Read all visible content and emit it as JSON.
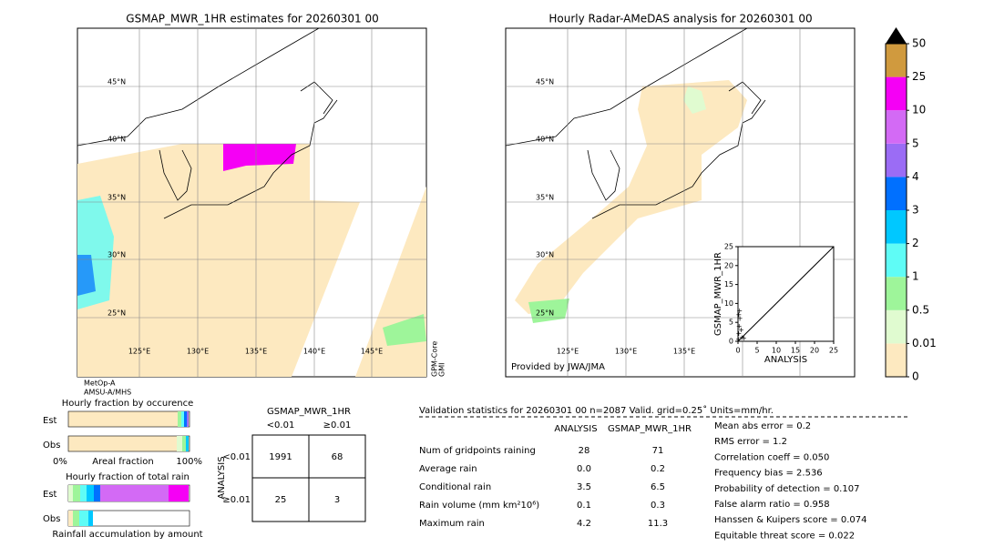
{
  "map_left": {
    "title": "GSMAP_MWR_1HR estimates for 20260301 00",
    "lat_labels": [
      "45°N",
      "40°N",
      "35°N",
      "30°N",
      "25°N"
    ],
    "lon_labels": [
      "125°E",
      "130°E",
      "135°E",
      "140°E",
      "145°E"
    ],
    "sensor": [
      "GPM-Core",
      "GMI"
    ],
    "satellites": [
      "MetOp-A",
      "AMSU-A/MHS"
    ]
  },
  "map_right": {
    "title": "Hourly Radar-AMeDAS analysis for 20260301 00",
    "lat_labels": [
      "45°N",
      "40°N",
      "35°N",
      "30°N",
      "25°N"
    ],
    "lon_labels": [
      "125°E",
      "130°E",
      "135°E"
    ],
    "credit": "Provided by JWA/JMA"
  },
  "colorbar": {
    "ticks": [
      0,
      0.01,
      0.5,
      1,
      2,
      3,
      4,
      5,
      10,
      25,
      50
    ],
    "colors": [
      "#fde9c0",
      "#e0fbd0",
      "#9ef59a",
      "#5ffcf6",
      "#00c8ff",
      "#0070ff",
      "#9b6cf5",
      "#d36af5",
      "#f500f5",
      "#d09a3e"
    ],
    "extend_color": "#000000"
  },
  "scatter": {
    "xlabel": "ANALYSIS",
    "ylabel": "GSMAP_MWR_1HR",
    "xlim": [
      0,
      25
    ],
    "ylim": [
      0,
      25
    ],
    "xticks": [
      0,
      5,
      10,
      15,
      20,
      25
    ],
    "yticks": [
      0,
      5,
      10,
      15,
      20,
      25
    ],
    "x": [
      0.1,
      0.2,
      0.3,
      0.5,
      0.8,
      1.0,
      1.5,
      0.4,
      0.2
    ],
    "y": [
      0.5,
      2,
      4,
      6,
      3,
      1,
      0.8,
      8,
      7
    ]
  },
  "fraction": {
    "occurrence_title": "Hourly fraction by occurence",
    "rows": [
      "Est",
      "Obs"
    ],
    "axis_labels": [
      "0%",
      "Areal fraction",
      "100%"
    ],
    "rain_title": "Hourly fraction of total rain",
    "rain_rows": [
      "Est",
      "Obs"
    ],
    "rain_caption": "Rainfall accumulation by amount"
  },
  "contingency": {
    "title": "GSMAP_MWR_1HR",
    "columns": [
      "<0.01",
      "≥0.01"
    ],
    "side_title": "ANALYSIS",
    "rows": [
      "<0.01",
      "≥0.01"
    ],
    "cells": [
      [
        "1991",
        "68"
      ],
      [
        "25",
        "3"
      ]
    ]
  },
  "validation": {
    "header": "Validation statistics for 20260301 00  n=2087 Valid. grid=0.25˚ Units=mm/hr.",
    "columns": [
      "ANALYSIS",
      "GSMAP_MWR_1HR"
    ],
    "rows": [
      {
        "label": "Num of gridpoints raining",
        "values": [
          "28",
          "71"
        ]
      },
      {
        "label": "Average rain",
        "values": [
          "0.0",
          "0.2"
        ]
      },
      {
        "label": "Conditional rain",
        "values": [
          "3.5",
          "6.5"
        ]
      },
      {
        "label": "Rain volume (mm km²10⁶)",
        "values": [
          "0.1",
          "0.3"
        ]
      },
      {
        "label": "Maximum rain",
        "values": [
          "4.2",
          "11.3"
        ]
      }
    ],
    "scores": [
      "Mean abs error =    0.2",
      "RMS error =    1.2",
      "Correlation coeff =  0.050",
      "Frequency bias =  2.536",
      "Probability of detection =  0.107",
      "False alarm ratio =  0.958",
      "Hanssen & Kuipers score =  0.074",
      "Equitable threat score =  0.022"
    ]
  }
}
